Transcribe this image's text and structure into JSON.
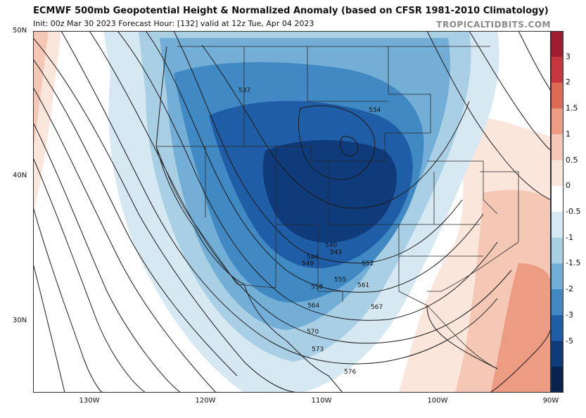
{
  "header": {
    "title": "ECMWF 500mb Geopotential Height & Normalized Anomaly (based on CFSR 1981-2010 Climatology)",
    "subtitle": "Init: 00z Mar 30 2023   Forecast Hour: [132]   valid at 12z Tue, Apr 04 2023",
    "brand": "TROPICALTIDBITS.COM"
  },
  "lat_labels": [
    "50N",
    "40N",
    "30N"
  ],
  "lon_labels": [
    "130W",
    "120W",
    "110W",
    "100W",
    "90W"
  ],
  "colorbar": {
    "labels": [
      "3",
      "2",
      "1.5",
      "1",
      "0.5",
      "0",
      "-0.5",
      "-1",
      "-1.5",
      "-2",
      "-3",
      "-5"
    ],
    "colors": [
      "#a01c2c",
      "#c6383d",
      "#dc6a57",
      "#eb9c82",
      "#f5c8b6",
      "#fbe6dc",
      "#ffffff",
      "#d6e8f2",
      "#a9cfe5",
      "#72aed6",
      "#4189c3",
      "#1f5da6",
      "#0f3b7a",
      "#08234e"
    ]
  },
  "contours": [
    {
      "label": "534"
    },
    {
      "label": "537"
    },
    {
      "label": "540"
    },
    {
      "label": "543"
    },
    {
      "label": "546"
    },
    {
      "label": "549"
    },
    {
      "label": "552"
    },
    {
      "label": "555"
    },
    {
      "label": "558"
    },
    {
      "label": "561"
    },
    {
      "label": "564"
    },
    {
      "label": "567"
    },
    {
      "label": "570"
    },
    {
      "label": "573"
    },
    {
      "label": "576"
    }
  ]
}
